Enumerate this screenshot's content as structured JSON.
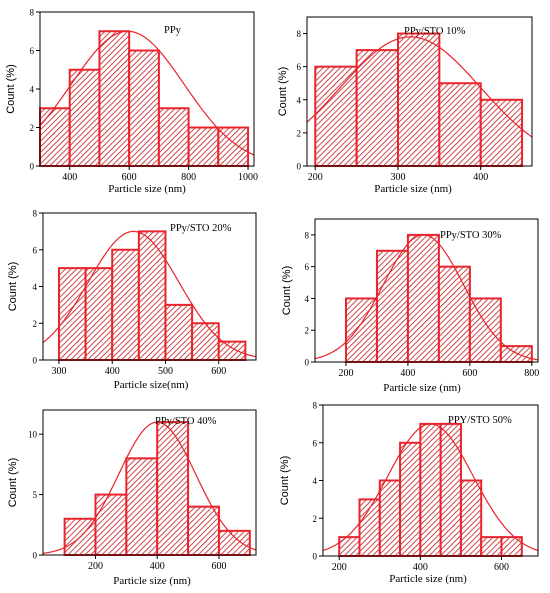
{
  "colors": {
    "bar_stroke": "#e8242c",
    "hatch": "#c0191f",
    "fit_curve": "#e8242c",
    "axis": "#000000"
  },
  "chart_data": [
    {
      "type": "bar",
      "title": "PPy",
      "xlabel": "Particle size (nm)",
      "ylabel": "Count (%)",
      "xlim": [
        300,
        1020
      ],
      "ylim": [
        0,
        8
      ],
      "xticks": [
        400,
        600,
        800,
        1000
      ],
      "yticks": [
        0,
        2,
        4,
        6,
        8
      ],
      "bin_width": 100,
      "bins": [
        {
          "start": 300,
          "value": 3
        },
        {
          "start": 400,
          "value": 5
        },
        {
          "start": 500,
          "value": 7
        },
        {
          "start": 600,
          "value": 6
        },
        {
          "start": 700,
          "value": 3
        },
        {
          "start": 800,
          "value": 2
        },
        {
          "start": 900,
          "value": 2
        }
      ],
      "fit": {
        "type": "gaussian",
        "mean": 595,
        "sd": 190,
        "peak": 7.0
      }
    },
    {
      "type": "bar",
      "title": "PPy/STO 10%",
      "xlabel": "Particle size (nm)",
      "ylabel": "Count (%)",
      "xlim": [
        190,
        462
      ],
      "ylim": [
        0,
        9
      ],
      "xticks": [
        200,
        300,
        400
      ],
      "yticks": [
        0,
        2,
        4,
        6,
        8
      ],
      "bin_width": 50,
      "bins": [
        {
          "start": 200,
          "value": 6
        },
        {
          "start": 250,
          "value": 7
        },
        {
          "start": 300,
          "value": 8
        },
        {
          "start": 350,
          "value": 5
        },
        {
          "start": 400,
          "value": 4
        }
      ],
      "fit": {
        "type": "gaussian",
        "mean": 315,
        "sd": 85,
        "peak": 7.8
      }
    },
    {
      "type": "bar",
      "title": "PPy/STO 20%",
      "xlabel": "Particle size(nm)",
      "ylabel": "Count (%)",
      "xlim": [
        270,
        670
      ],
      "ylim": [
        0,
        8
      ],
      "xticks": [
        300,
        400,
        500,
        600
      ],
      "yticks": [
        0,
        2,
        4,
        6,
        8
      ],
      "bin_width": 50,
      "bins": [
        {
          "start": 300,
          "value": 5
        },
        {
          "start": 350,
          "value": 5
        },
        {
          "start": 400,
          "value": 6
        },
        {
          "start": 450,
          "value": 7
        },
        {
          "start": 500,
          "value": 3
        },
        {
          "start": 550,
          "value": 2
        },
        {
          "start": 600,
          "value": 1
        }
      ],
      "fit": {
        "type": "gaussian",
        "mean": 440,
        "sd": 85,
        "peak": 7.0
      }
    },
    {
      "type": "bar",
      "title": "PPy/STO 30%",
      "xlabel": "Particle size (nm)",
      "ylabel": "Count (%)",
      "xlim": [
        100,
        820
      ],
      "ylim": [
        0,
        9
      ],
      "xticks": [
        200,
        400,
        600,
        800
      ],
      "yticks": [
        0,
        2,
        4,
        6,
        8
      ],
      "bin_width": 100,
      "bins": [
        {
          "start": 200,
          "value": 4
        },
        {
          "start": 300,
          "value": 7
        },
        {
          "start": 400,
          "value": 8
        },
        {
          "start": 500,
          "value": 6
        },
        {
          "start": 600,
          "value": 4
        },
        {
          "start": 700,
          "value": 1
        }
      ],
      "fit": {
        "type": "gaussian",
        "mean": 450,
        "sd": 130,
        "peak": 8.0
      }
    },
    {
      "type": "bar",
      "title": "PPy/STO 40%",
      "xlabel": "Particle size (nm)",
      "ylabel": "Count (%)",
      "xlim": [
        30,
        720
      ],
      "ylim": [
        0,
        12
      ],
      "xticks": [
        200,
        400,
        600
      ],
      "yticks": [
        0,
        5,
        10
      ],
      "bin_width": 100,
      "bins": [
        {
          "start": 100,
          "value": 3
        },
        {
          "start": 200,
          "value": 5
        },
        {
          "start": 300,
          "value": 8
        },
        {
          "start": 400,
          "value": 11
        },
        {
          "start": 500,
          "value": 4
        },
        {
          "start": 600,
          "value": 2
        }
      ],
      "fit": {
        "type": "gaussian",
        "mean": 400,
        "sd": 125,
        "peak": 11.0
      }
    },
    {
      "type": "bar",
      "title": "PPY/STO 50%",
      "xlabel": "Particle size (nm)",
      "ylabel": "Count (%)",
      "xlim": [
        160,
        690
      ],
      "ylim": [
        0,
        8
      ],
      "xticks": [
        200,
        400,
        600
      ],
      "yticks": [
        0,
        2,
        4,
        6,
        8
      ],
      "bin_width": 50,
      "bins": [
        {
          "start": 200,
          "value": 1
        },
        {
          "start": 250,
          "value": 3
        },
        {
          "start": 300,
          "value": 4
        },
        {
          "start": 350,
          "value": 6
        },
        {
          "start": 400,
          "value": 7
        },
        {
          "start": 450,
          "value": 7
        },
        {
          "start": 500,
          "value": 4
        },
        {
          "start": 550,
          "value": 1
        },
        {
          "start": 600,
          "value": 1
        }
      ],
      "fit": {
        "type": "gaussian",
        "mean": 425,
        "sd": 105,
        "peak": 7.0
      }
    }
  ]
}
